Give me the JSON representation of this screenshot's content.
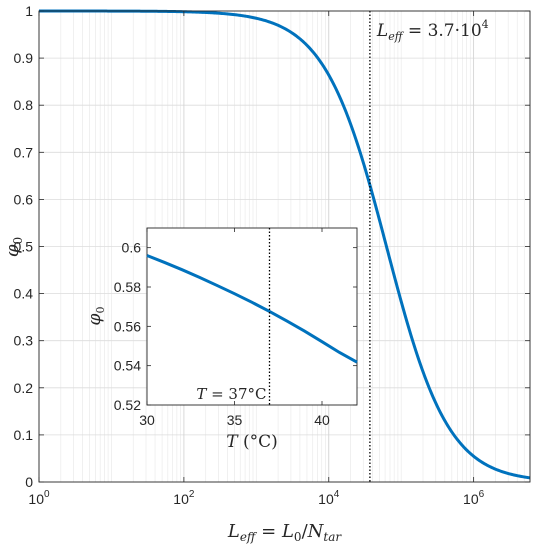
{
  "chart_data": [
    {
      "type": "line",
      "title": "",
      "xlabel": "L_eff = L_0 / N_tar",
      "ylabel": "φ_0",
      "xscale": "log",
      "xlim": [
        1,
        6000000
      ],
      "ylim": [
        0,
        1
      ],
      "grid": true,
      "xticks": [
        1,
        100,
        10000,
        1000000
      ],
      "yticks": [
        0,
        0.1,
        0.2,
        0.3,
        0.4,
        0.5,
        0.6,
        0.7,
        0.8,
        0.9,
        1
      ],
      "x_tick_labels": [
        "10^0",
        "10^2",
        "10^4",
        "10^6"
      ],
      "y_tick_labels": [
        "0",
        "0.1",
        "0.2",
        "0.3",
        "0.4",
        "0.5",
        "0.6",
        "0.7",
        "0.8",
        "0.9",
        "1"
      ],
      "series": [
        {
          "color": "#0072BD",
          "model": "1/(1+x/L50)^n",
          "L50": 67000,
          "n": 1.05
        }
      ],
      "vline": {
        "x": 37000,
        "style": "dotted",
        "label": "L_eff = 3.7·10^4"
      }
    },
    {
      "type": "line",
      "title": "",
      "xlabel": "T (°C)",
      "ylabel": "φ_0",
      "xlim": [
        30,
        42
      ],
      "ylim": [
        0.52,
        0.61
      ],
      "grid": false,
      "xticks": [
        30,
        35,
        40
      ],
      "yticks": [
        0.52,
        0.54,
        0.56,
        0.58,
        0.6
      ],
      "x_tick_labels": [
        "30",
        "35",
        "40"
      ],
      "y_tick_labels": [
        "0.52",
        "0.54",
        "0.56",
        "0.58",
        "0.6"
      ],
      "series": [
        {
          "color": "#0072BD",
          "x": [
            30,
            31,
            32,
            33,
            34,
            35,
            36,
            37,
            38,
            39,
            40,
            41,
            42
          ],
          "y": [
            0.596,
            0.5925,
            0.5888,
            0.5849,
            0.5808,
            0.5766,
            0.5722,
            0.5676,
            0.5627,
            0.5576,
            0.5522,
            0.5467,
            0.5418
          ]
        }
      ],
      "vline": {
        "x": 37,
        "style": "dotted",
        "label": "T = 37°C"
      }
    }
  ]
}
